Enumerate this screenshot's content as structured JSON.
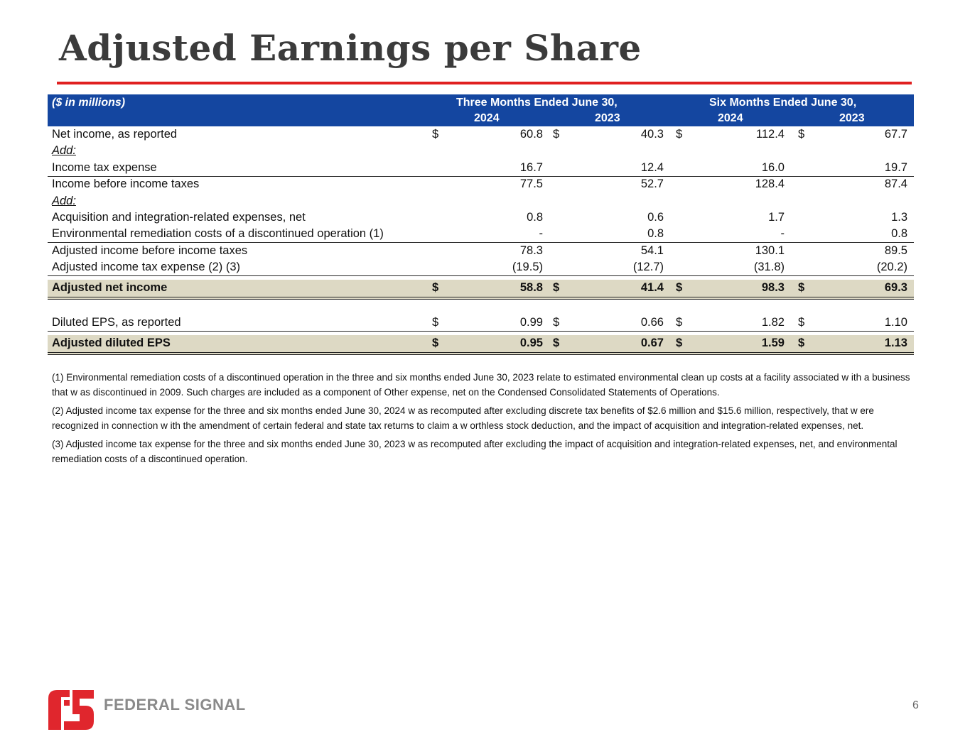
{
  "title": "Adjusted Earnings per Share",
  "header": {
    "units": "($ in millions)",
    "three_months": "Three Months Ended June 30,",
    "six_months": "Six Months Ended June 30,",
    "years": [
      "2024",
      "2023",
      "2024",
      "2023"
    ]
  },
  "rows": [
    {
      "label": "Net income, as reported",
      "dollar": true,
      "values": [
        "60.8",
        "40.3",
        "112.4",
        "67.7"
      ]
    },
    {
      "label": "Add:",
      "italic": true,
      "values": [
        "",
        "",
        "",
        ""
      ]
    },
    {
      "label": "Income tax expense",
      "values": [
        "16.7",
        "12.4",
        "16.0",
        "19.7"
      ]
    },
    {
      "label": "Income before income taxes",
      "values": [
        "77.5",
        "52.7",
        "128.4",
        "87.4"
      ]
    },
    {
      "label": "Add:",
      "italic": true,
      "values": [
        "",
        "",
        "",
        ""
      ]
    },
    {
      "label": "Acquisition and integration-related expenses, net",
      "values": [
        "0.8",
        "0.6",
        "1.7",
        "1.3"
      ]
    },
    {
      "label": "Environmental remediation costs of a discontinued operation (1)",
      "values": [
        "-",
        "0.8",
        "-",
        "0.8"
      ]
    },
    {
      "label": "Adjusted income before income taxes",
      "values": [
        "78.3",
        "54.1",
        "130.1",
        "89.5"
      ]
    },
    {
      "label": "Adjusted income tax expense (2) (3)",
      "values": [
        "(19.5)",
        "(12.7)",
        "(31.8)",
        "(20.2)"
      ]
    },
    {
      "label": "Adjusted net income",
      "dollar": true,
      "values": [
        "58.8",
        "41.4",
        "98.3",
        "69.3"
      ]
    },
    {
      "label": "Diluted EPS, as reported",
      "dollar": true,
      "values": [
        "0.99",
        "0.66",
        "1.82",
        "1.10"
      ]
    },
    {
      "label": "Adjusted diluted EPS",
      "dollar": true,
      "values": [
        "0.95",
        "0.67",
        "1.59",
        "1.13"
      ]
    }
  ],
  "dollar_sign": "$",
  "notes": [
    "(1) Environmental remediation costs of a discontinued operation in the three and six months ended June 30, 2023 relate to estimated environmental clean up costs at a facility associated w ith a business that w as discontinued in 2009. Such charges are included as a component of Other expense, net on the Condensed Consolidated Statements of Operations.",
    "(2) Adjusted income tax expense for the three and six months ended June 30, 2024 w as recomputed after excluding discrete tax benefits of $2.6 million and $15.6 million, respectively, that w ere recognized in connection w ith the amendment of certain federal and state tax returns to claim a w orthless stock deduction, and the impact of acquisition and integration-related expenses, net.",
    "(3) Adjusted income tax expense for the three and six months ended June 30, 2023 w as recomputed after excluding the impact of acquisition and integration-related expenses, net, and environmental remediation costs of a discontinued operation."
  ],
  "logo": {
    "text": "FEDERAL SIGNAL"
  },
  "page_number": "6"
}
